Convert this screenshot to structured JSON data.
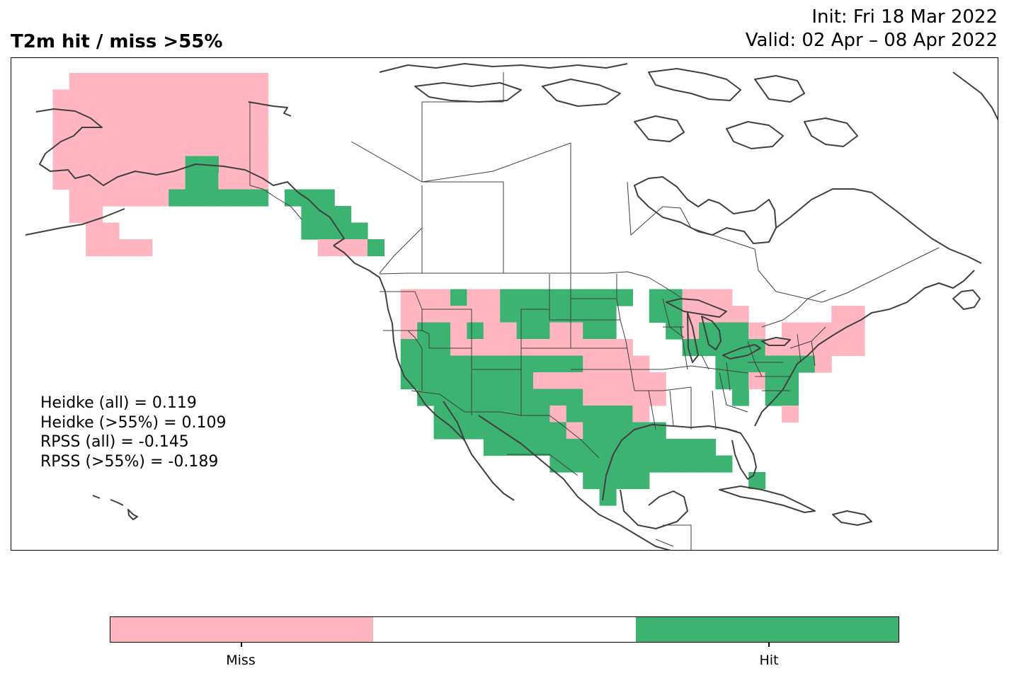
{
  "title": {
    "left": "T2m hit / miss  >55%",
    "init": "Init: Fri 18 Mar 2022",
    "valid": "Valid: 02 Apr – 08 Apr 2022"
  },
  "stats": [
    "Heidke (all) = 0.119",
    "Heidke (>55%) = 0.109",
    "RPSS (all) = -0.145",
    "RPSS (>55%) = -0.189"
  ],
  "colors": {
    "miss": "#ffb6c1",
    "neutral": "#ffffff",
    "hit": "#3cb371",
    "coast": "#404040",
    "border": "#404040"
  },
  "legend": {
    "miss_label": "Miss",
    "hit_label": "Hit"
  },
  "map_data": {
    "projection": "PlateCarree",
    "extent_lon": [
      -180,
      -10
    ],
    "extent_lat": [
      10,
      75
    ],
    "grid_resolution_deg": 2,
    "layers": [
      "coastlines",
      "country-borders",
      "us-states",
      "canada-provinces"
    ],
    "regions": [
      {
        "name": "Alaska",
        "category": "Miss"
      },
      {
        "name": "South-central Alaska coast",
        "category": "Hit"
      },
      {
        "name": "Southeast Alaska panhandle",
        "category": "Hit"
      },
      {
        "name": "Pacific Northwest",
        "category": "Miss"
      },
      {
        "name": "Northern Rockies / Montana",
        "category": "Hit"
      },
      {
        "name": "Southwest US",
        "category": "Hit"
      },
      {
        "name": "Texas",
        "category": "Hit"
      },
      {
        "name": "Central Plains",
        "category": "Miss"
      },
      {
        "name": "Upper Midwest",
        "category": "Hit"
      },
      {
        "name": "Michigan",
        "category": "Miss"
      },
      {
        "name": "Ohio Valley / Mid-Atlantic",
        "category": "Hit"
      },
      {
        "name": "Northeast US",
        "category": "Miss"
      },
      {
        "name": "Gulf Coast",
        "category": "Hit"
      },
      {
        "name": "Florida",
        "category": "Hit"
      }
    ]
  }
}
